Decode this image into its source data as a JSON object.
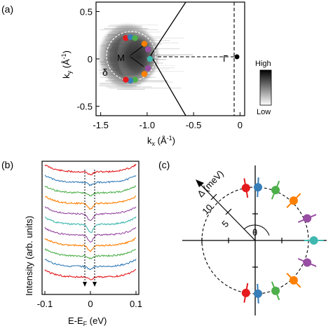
{
  "panel_a": {
    "label": "(a)",
    "xlabel": "k",
    "xlabel_sub": "x",
    "xlabel_unit": " (Å",
    "ylabel": "k",
    "ylabel_sub": "y",
    "ylabel_unit": " (Å",
    "unit_exp": "-1",
    "unit_close": ")",
    "point_M": "M",
    "point_Gamma": "Γ",
    "delta_label": "δ",
    "colorbar_high": "High",
    "colorbar_low": "Low",
    "x_ticks": [
      "-1.5",
      "-1.0",
      "-0.5",
      "0"
    ],
    "y_ticks": [
      "0.5",
      "0",
      "-0.5"
    ],
    "xlim": [
      -1.55,
      0.05
    ],
    "ylim": [
      -0.6,
      0.6
    ]
  },
  "panel_b": {
    "label": "(b)",
    "xlabel": "E-E",
    "xlabel_sub": "F",
    "xlabel_unit": " (eV)",
    "ylabel": "Intensity (arb. units)",
    "x_ticks": [
      "-0.1",
      "0",
      "0.1"
    ],
    "xlim": [
      -0.1,
      0.1
    ],
    "curve_colors": [
      "#e41a1c",
      "#377eb8",
      "#4daf4a",
      "#ff7f00",
      "#984ea3",
      "#40b8b0",
      "#984ea3",
      "#ff7f00",
      "#4daf4a",
      "#377eb8",
      "#e41a1c"
    ]
  },
  "panel_c": {
    "label": "(c)",
    "axis_label": "Δ (meV)",
    "tick_5": "5",
    "tick_10": "10",
    "theta_label": "θ"
  },
  "chart_data": [
    {
      "type": "heatmap",
      "title": "",
      "xlabel": "kx (Å-1)",
      "ylabel": "ky (Å-1)",
      "xlim": [
        -1.55,
        0.05
      ],
      "ylim": [
        -0.6,
        0.6
      ],
      "x_ticks": [
        -1.5,
        -1.0,
        -0.5,
        0
      ],
      "y_ticks": [
        -0.5,
        0,
        0.5
      ],
      "colorbar": [
        "High",
        "Low"
      ],
      "fermi_surface_points": [
        {
          "kx": -1.23,
          "ky": 0.22,
          "color": "#e41a1c"
        },
        {
          "kx": -1.18,
          "ky": 0.23,
          "color": "#377eb8"
        },
        {
          "kx": -1.13,
          "ky": 0.22,
          "color": "#4daf4a"
        },
        {
          "kx": -1.03,
          "ky": 0.16,
          "color": "#ff7f00"
        },
        {
          "kx": -0.99,
          "ky": 0.1,
          "color": "#984ea3"
        },
        {
          "kx": -0.97,
          "ky": 0.0,
          "color": "#40b8b0"
        },
        {
          "kx": -0.99,
          "ky": -0.1,
          "color": "#984ea3"
        },
        {
          "kx": -1.03,
          "ky": -0.16,
          "color": "#ff7f00"
        },
        {
          "kx": -1.13,
          "ky": -0.22,
          "color": "#4daf4a"
        },
        {
          "kx": -1.18,
          "ky": -0.23,
          "color": "#377eb8"
        },
        {
          "kx": -1.23,
          "ky": -0.22,
          "color": "#e41a1c"
        }
      ]
    },
    {
      "type": "line",
      "title": "",
      "xlabel": "E-EF (eV)",
      "ylabel": "Intensity (arb. units)",
      "xlim": [
        -0.1,
        0.1
      ],
      "series_count": 11
    },
    {
      "type": "scatter",
      "title": "",
      "polar": true,
      "radial_label": "Δ (meV)",
      "radial_ticks": [
        5,
        10
      ],
      "angle_label": "θ",
      "points": [
        {
          "theta_deg": 100,
          "delta": 10,
          "color": "#e41a1c"
        },
        {
          "theta_deg": 87,
          "delta": 10,
          "color": "#377eb8"
        },
        {
          "theta_deg": 68,
          "delta": 10.2,
          "color": "#4daf4a"
        },
        {
          "theta_deg": 46,
          "delta": 10.4,
          "color": "#ff7f00"
        },
        {
          "theta_deg": 23,
          "delta": 10.6,
          "color": "#984ea3"
        },
        {
          "theta_deg": 0,
          "delta": 11,
          "color": "#40b8b0"
        },
        {
          "theta_deg": -23,
          "delta": 10.6,
          "color": "#984ea3"
        },
        {
          "theta_deg": -46,
          "delta": 10.4,
          "color": "#ff7f00"
        },
        {
          "theta_deg": -68,
          "delta": 10.2,
          "color": "#4daf4a"
        },
        {
          "theta_deg": -87,
          "delta": 10,
          "color": "#377eb8"
        },
        {
          "theta_deg": -100,
          "delta": 10,
          "color": "#e41a1c"
        }
      ]
    }
  ]
}
